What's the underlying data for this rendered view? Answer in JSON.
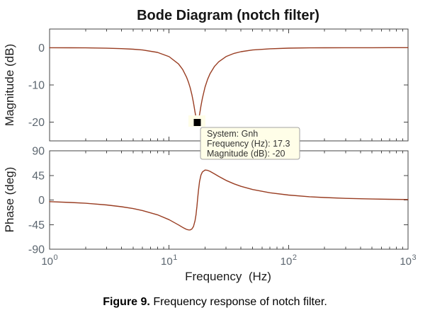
{
  "figure": {
    "title": "Bode Diagram (notch filter)",
    "caption": {
      "label": "Figure 9.",
      "text": " Frequency response of notch filter."
    }
  },
  "datatip": {
    "lines": [
      "System: Gnh",
      "Frequency (Hz): 17.3",
      "Magnitude (dB): -20"
    ],
    "system": "Gnh",
    "frequency_hz": 17.3,
    "magnitude_db": -20
  },
  "colors": {
    "curve": "#993d22",
    "axis": "#444444",
    "tick_label": "#5d6770",
    "axis_label": "#1c1c1c",
    "title": "#161616",
    "datatip_bg": "#fffee8",
    "datatip_border": "#a3a3a3",
    "datatip_text": "#333333",
    "marker": "#000000"
  },
  "chart_data": [
    {
      "type": "line",
      "subplot": "magnitude",
      "xscale": "log",
      "xlim": [
        1,
        1000
      ],
      "ylim": [
        -25,
        5
      ],
      "yticks": [
        0,
        -10,
        -20
      ],
      "ylabel": "Magnitude (dB)",
      "grid": false,
      "marker_point": {
        "x": 17.3,
        "y": -20
      },
      "series": [
        {
          "name": "Gnh",
          "x": [
            1,
            1.5,
            2,
            3,
            4,
            5,
            6,
            8,
            10,
            12,
            13,
            14,
            14.5,
            15,
            15.5,
            16,
            16.5,
            16.8,
            17,
            17.1,
            17.3,
            17.5,
            17.6,
            18,
            18.5,
            19,
            20,
            21,
            22,
            24,
            26,
            30,
            35,
            40,
            50,
            70,
            100,
            150,
            200,
            300,
            500,
            700,
            1000
          ],
          "y": [
            -0.01,
            -0.03,
            -0.06,
            -0.14,
            -0.25,
            -0.41,
            -0.62,
            -1.27,
            -2.41,
            -4.37,
            -5.87,
            -7.89,
            -9.18,
            -10.71,
            -12.54,
            -14.74,
            -17.26,
            -18.73,
            -19.51,
            -19.77,
            -20,
            -19.78,
            -19.52,
            -17.91,
            -15.6,
            -13.59,
            -10.59,
            -8.52,
            -7.02,
            -5.02,
            -3.79,
            -2.39,
            -1.53,
            -1.07,
            -0.62,
            -0.29,
            -0.13,
            -0.06,
            -0.03,
            -0.01,
            -0.01,
            0,
            0
          ]
        }
      ]
    },
    {
      "type": "line",
      "subplot": "phase",
      "xscale": "log",
      "xlim": [
        1,
        1000
      ],
      "ylim": [
        -90,
        90
      ],
      "yticks": [
        90,
        45,
        0,
        -45,
        -90
      ],
      "ylabel": "Phase (deg)",
      "xlabel": "Frequency  (Hz)",
      "xticklabels": [
        "10^0",
        "10^1",
        "10^2",
        "10^3"
      ],
      "grid": false,
      "series": [
        {
          "name": "Gnh",
          "x": [
            1,
            1.5,
            2,
            3,
            4,
            5,
            6,
            8,
            10,
            12,
            13,
            14,
            14.5,
            15,
            15.5,
            16,
            16.5,
            16.8,
            17,
            17.1,
            17.3,
            17.5,
            17.6,
            18,
            18.5,
            19,
            20,
            21,
            22,
            24,
            26,
            30,
            35,
            40,
            50,
            70,
            100,
            150,
            200,
            300,
            500,
            700,
            1000
          ],
          "y": [
            -3,
            -4.5,
            -6,
            -9.1,
            -12.3,
            -15.7,
            -19.3,
            -27.1,
            -36,
            -45.6,
            -50.1,
            -53.7,
            -54.7,
            -54.8,
            -53.1,
            -48.5,
            -38,
            -27.1,
            -17.2,
            -11.8,
            0,
            11.6,
            17,
            33.9,
            45.7,
            51.3,
            54.8,
            54.3,
            52.5,
            47.8,
            43.3,
            35.9,
            29.5,
            25,
            19.2,
            13.2,
            9.1,
            6,
            4.5,
            3,
            1.8,
            1.3,
            0.9
          ]
        }
      ]
    }
  ]
}
